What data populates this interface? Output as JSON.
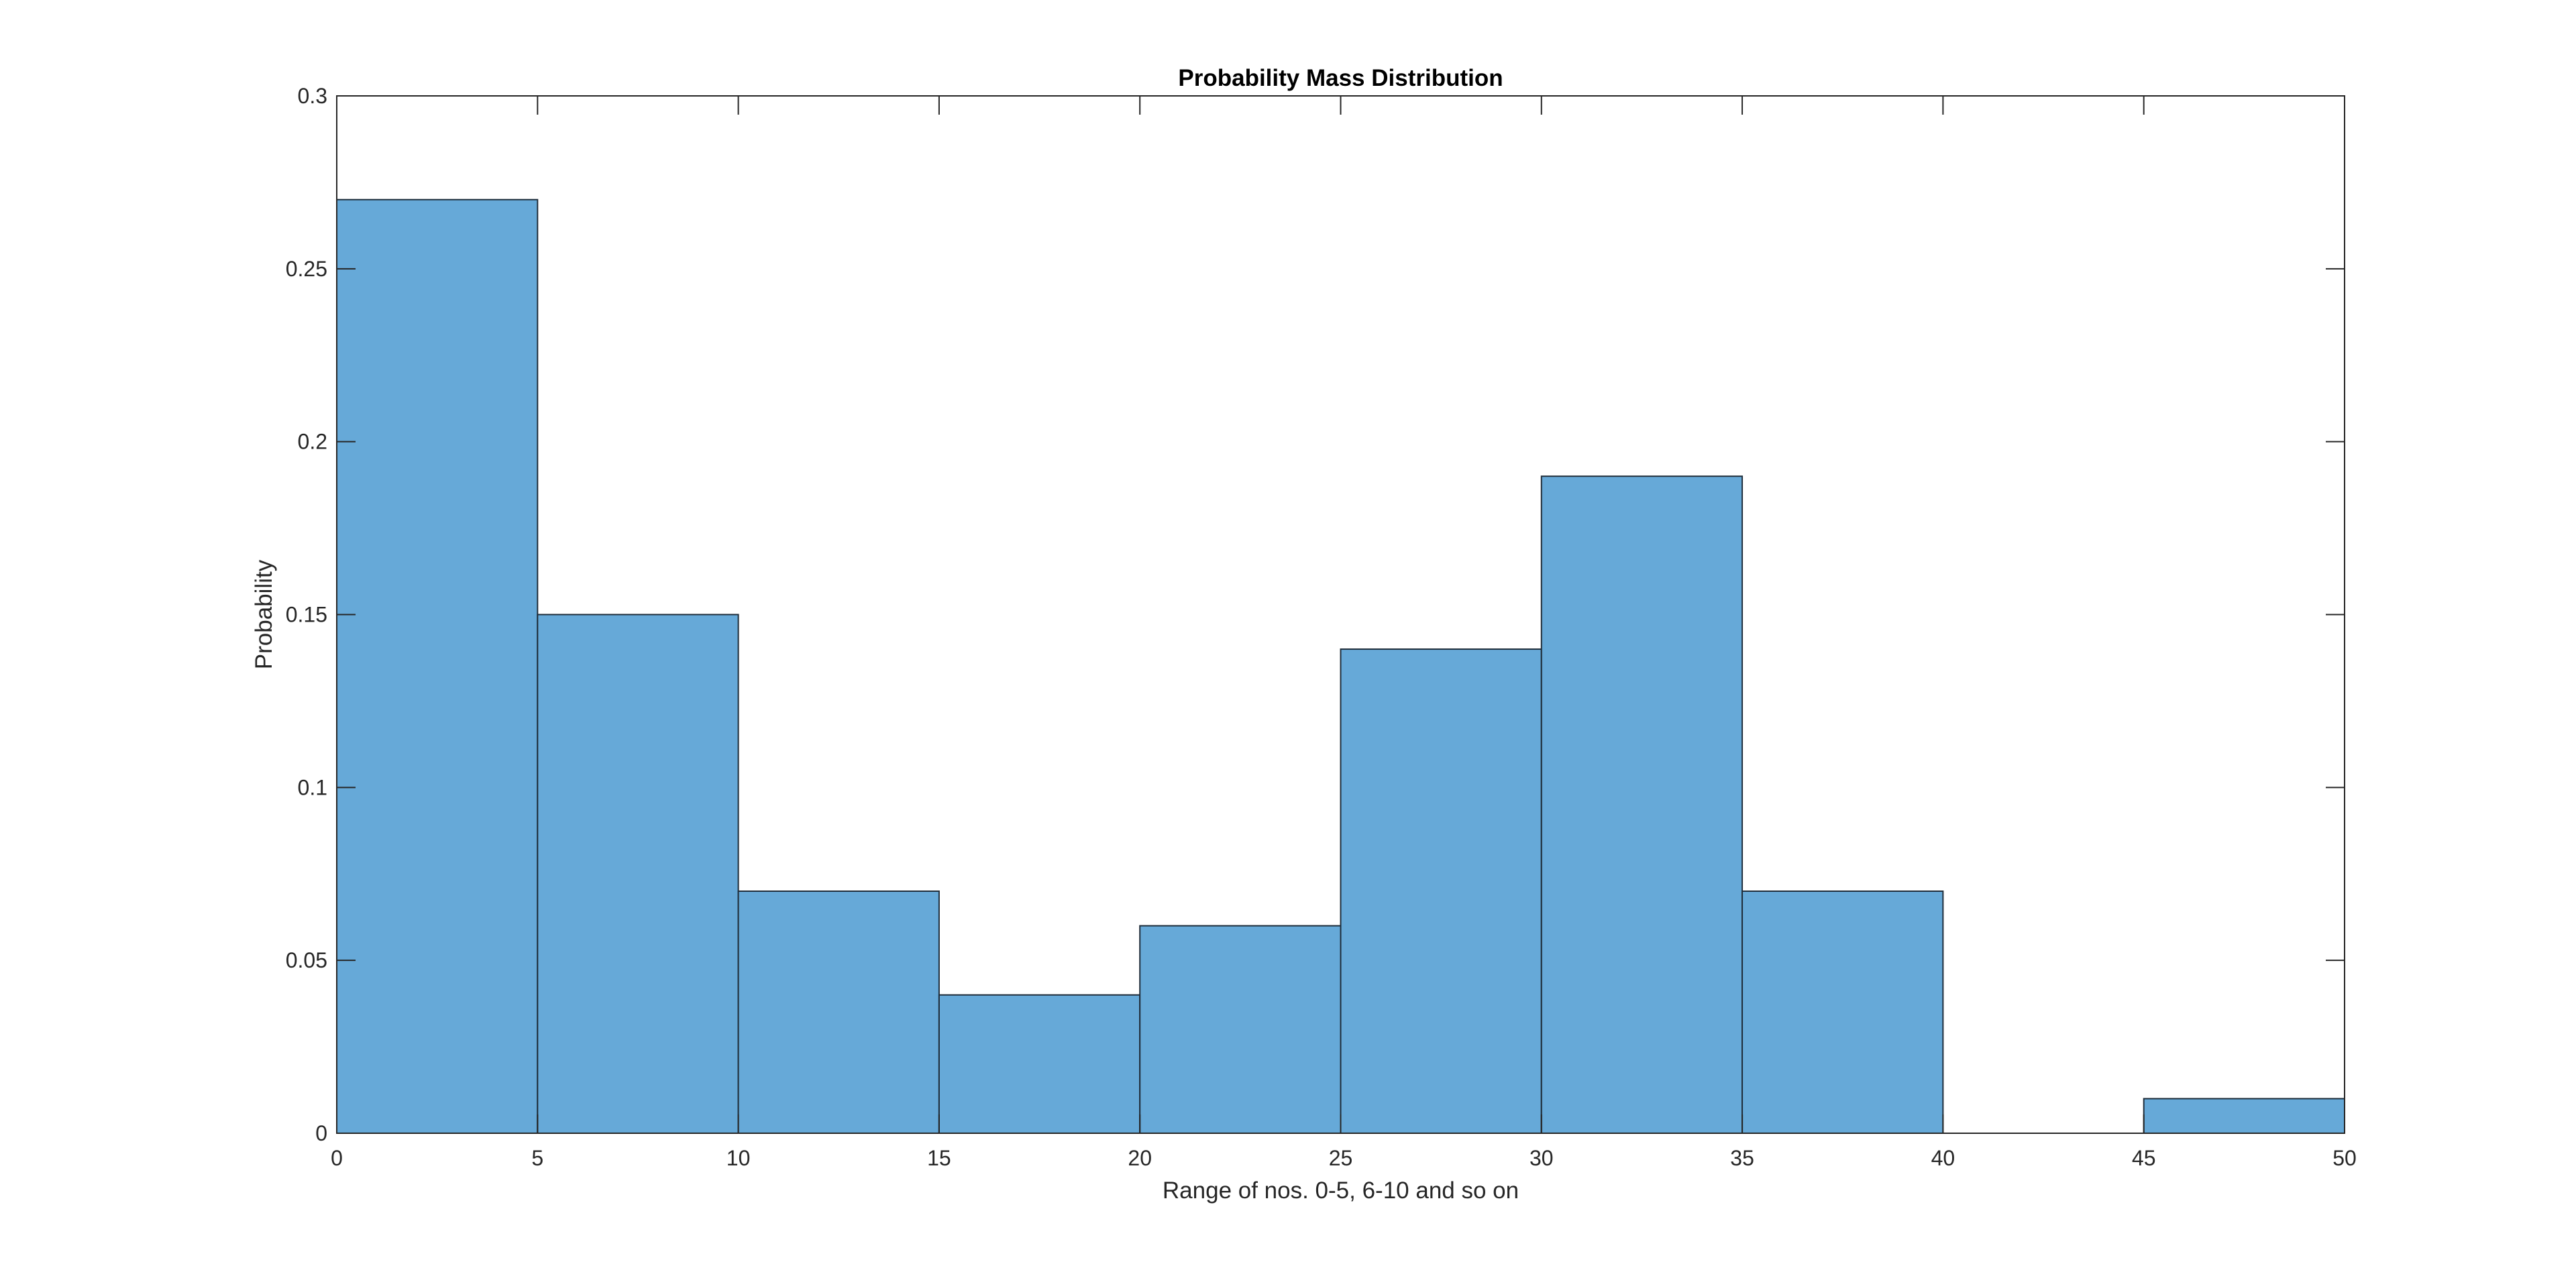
{
  "chart_data": {
    "type": "bar",
    "title": "Probability Mass Distribution",
    "xlabel": "Range of nos. 0-5, 6-10 and so on",
    "ylabel": "Probability",
    "bin_edges": [
      0,
      5,
      10,
      15,
      20,
      25,
      30,
      35,
      40,
      45,
      50
    ],
    "values": [
      0.27,
      0.15,
      0.07,
      0.04,
      0.06,
      0.14,
      0.19,
      0.07,
      0.0,
      0.01
    ],
    "xlim": [
      0,
      50
    ],
    "ylim": [
      0,
      0.3
    ],
    "xticks": [
      0,
      5,
      10,
      15,
      20,
      25,
      30,
      35,
      40,
      45,
      50
    ],
    "xtick_labels": [
      "0",
      "5",
      "10",
      "15",
      "20",
      "25",
      "30",
      "35",
      "40",
      "45",
      "50"
    ],
    "yticks": [
      0,
      0.05,
      0.1,
      0.15,
      0.2,
      0.25,
      0.3
    ],
    "ytick_labels": [
      "0",
      "0.05",
      "0.1",
      "0.15",
      "0.2",
      "0.25",
      "0.3"
    ],
    "grid": false,
    "legend": "none",
    "colors": {
      "bar_fill": "#66a9d8",
      "bar_edge": "#1f2d3a",
      "axis": "#262626"
    }
  }
}
